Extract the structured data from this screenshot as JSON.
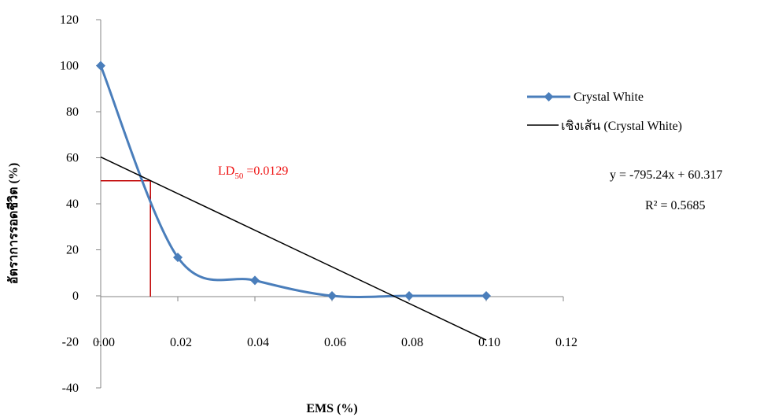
{
  "chart_data": {
    "type": "scatter",
    "xlabel": "EMS (%)",
    "ylabel": "อัตราการรอดชีวิต (%)",
    "xlim": [
      0,
      0.12
    ],
    "ylim": [
      -40,
      120
    ],
    "x_ticks": [
      "0.00",
      "0.02",
      "0.04",
      "0.06",
      "0.08",
      "0.10",
      "0.12"
    ],
    "y_ticks": [
      "120",
      "100",
      "80",
      "60",
      "40",
      "20",
      "0",
      "-20",
      "-40"
    ],
    "series": [
      {
        "name": "Crystal White",
        "color": "#4a7ebb",
        "marker": "diamond",
        "line": "smooth",
        "x": [
          0,
          0.02,
          0.04,
          0.06,
          0.08,
          0.1
        ],
        "y": [
          100,
          16.7,
          6.7,
          0,
          0,
          0
        ]
      },
      {
        "name": "เชิงเส้น (Crystal White)",
        "color": "#000000",
        "type": "linear-trendline",
        "slope": -795.24,
        "intercept": 60.317,
        "x_range": [
          0,
          0.1
        ]
      }
    ],
    "annotations": {
      "equation": "y = -795.24x + 60.317",
      "r_squared": "R² = 0.5685",
      "ld_prefix": "LD",
      "ld_subscript": "50",
      "ld_value": " =0.0129",
      "ld_x": 0.0129,
      "ld_y": 50,
      "ld_color": "#ee1111"
    },
    "legend_position": "right",
    "grid": false
  }
}
